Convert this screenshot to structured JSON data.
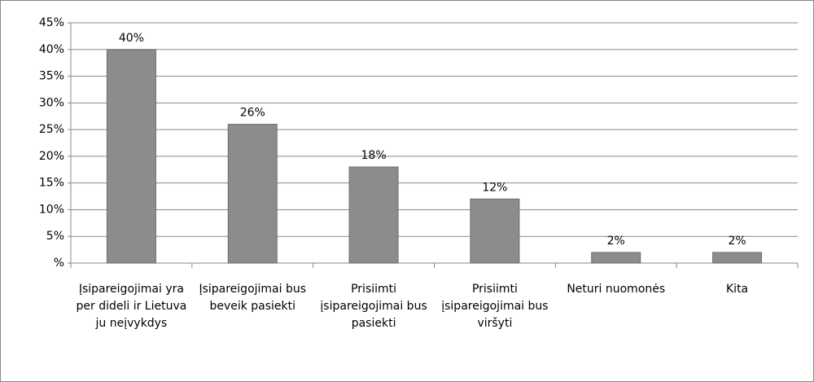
{
  "chart_data": {
    "type": "bar",
    "categories": [
      "Įsipareigojimai yra per dideli ir Lietuva ju neįvykdys",
      "Įsipareigojimai bus beveik pasiekti",
      "Prisiimti įsipareigojimai bus pasiekti",
      "Prisiimti įsipareigojimai bus viršyti",
      "Neturi nuomonės",
      "Kita"
    ],
    "values": [
      40,
      26,
      18,
      12,
      2,
      2
    ],
    "value_labels": [
      "40%",
      "26%",
      "18%",
      "12%",
      "2%",
      "2%"
    ],
    "color": "#8c8c8c",
    "ylim": [
      0,
      45
    ],
    "yticks": [
      {
        "value": 0,
        "label": "%"
      },
      {
        "value": 5,
        "label": "5%"
      },
      {
        "value": 10,
        "label": "10%"
      },
      {
        "value": 15,
        "label": "15%"
      },
      {
        "value": 20,
        "label": "20%"
      },
      {
        "value": 25,
        "label": "25%"
      },
      {
        "value": 30,
        "label": "30%"
      },
      {
        "value": 35,
        "label": "35%"
      },
      {
        "value": 40,
        "label": "40%"
      },
      {
        "value": 45,
        "label": "45%"
      }
    ],
    "grid": true
  }
}
